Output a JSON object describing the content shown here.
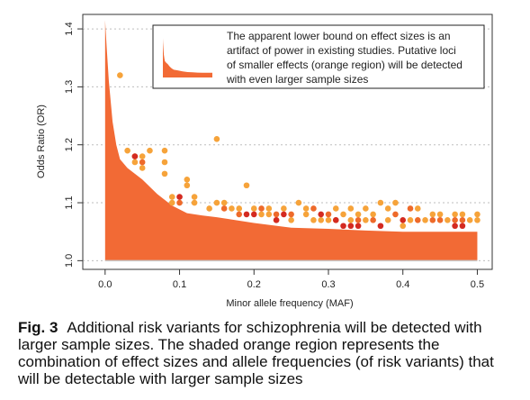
{
  "chart_data": {
    "type": "scatter",
    "title": "",
    "xlabel": "Minor allele frequency (MAF)",
    "ylabel": "Odds Ratio (OR)",
    "xlim": [
      -0.03,
      0.52
    ],
    "ylim": [
      0.985,
      1.425
    ],
    "xticks": [
      0.0,
      0.1,
      0.2,
      0.3,
      0.4,
      0.5
    ],
    "xtick_labels": [
      "0.0",
      "0.1",
      "0.2",
      "0.3",
      "0.4",
      "0.5"
    ],
    "yticks": [
      1.0,
      1.1,
      1.2,
      1.3,
      1.4
    ],
    "ytick_labels": [
      "1.0",
      "1.1",
      "1.2",
      "1.3",
      "1.4"
    ],
    "grid": "horizontal dotted",
    "annotation": "The apparent lower bound on effect sizes is an artifact of power in existing studies. Putative loci of smaller effects (orange region) will be detected with even larger sample sizes",
    "region_color": "#f26a35",
    "colors": [
      "#f6a33a",
      "#ee6a2a",
      "#d42a20"
    ],
    "region": {
      "x": [
        0.0,
        0.002,
        0.005,
        0.01,
        0.015,
        0.02,
        0.03,
        0.05,
        0.07,
        0.09,
        0.11,
        0.13,
        0.15,
        0.2,
        0.25,
        0.3,
        0.35,
        0.4,
        0.45,
        0.5
      ],
      "y": [
        1.415,
        1.37,
        1.31,
        1.24,
        1.2,
        1.175,
        1.16,
        1.14,
        1.115,
        1.095,
        1.082,
        1.078,
        1.075,
        1.065,
        1.057,
        1.055,
        1.052,
        1.05,
        1.05,
        1.05
      ]
    },
    "series": [
      {
        "color_index": 0,
        "points": [
          [
            0.02,
            1.32
          ],
          [
            0.03,
            1.19
          ],
          [
            0.04,
            1.17
          ],
          [
            0.04,
            1.18
          ],
          [
            0.05,
            1.16
          ],
          [
            0.05,
            1.18
          ],
          [
            0.06,
            1.19
          ],
          [
            0.08,
            1.19
          ],
          [
            0.08,
            1.17
          ],
          [
            0.08,
            1.15
          ],
          [
            0.09,
            1.1
          ],
          [
            0.09,
            1.11
          ],
          [
            0.11,
            1.14
          ],
          [
            0.11,
            1.13
          ],
          [
            0.12,
            1.11
          ],
          [
            0.12,
            1.1
          ],
          [
            0.14,
            1.09
          ],
          [
            0.15,
            1.21
          ],
          [
            0.15,
            1.1
          ],
          [
            0.16,
            1.1
          ],
          [
            0.17,
            1.09
          ],
          [
            0.18,
            1.09
          ],
          [
            0.19,
            1.13
          ],
          [
            0.2,
            1.09
          ],
          [
            0.21,
            1.08
          ],
          [
            0.22,
            1.08
          ],
          [
            0.22,
            1.09
          ],
          [
            0.23,
            1.07
          ],
          [
            0.24,
            1.09
          ],
          [
            0.25,
            1.07
          ],
          [
            0.26,
            1.1
          ],
          [
            0.27,
            1.08
          ],
          [
            0.27,
            1.09
          ],
          [
            0.28,
            1.07
          ],
          [
            0.29,
            1.07
          ],
          [
            0.3,
            1.07
          ],
          [
            0.31,
            1.09
          ],
          [
            0.31,
            1.07
          ],
          [
            0.32,
            1.08
          ],
          [
            0.33,
            1.09
          ],
          [
            0.33,
            1.07
          ],
          [
            0.34,
            1.08
          ],
          [
            0.35,
            1.09
          ],
          [
            0.35,
            1.07
          ],
          [
            0.36,
            1.08
          ],
          [
            0.37,
            1.1
          ],
          [
            0.38,
            1.09
          ],
          [
            0.38,
            1.07
          ],
          [
            0.39,
            1.1
          ],
          [
            0.4,
            1.06
          ],
          [
            0.41,
            1.07
          ],
          [
            0.42,
            1.09
          ],
          [
            0.43,
            1.07
          ],
          [
            0.44,
            1.08
          ],
          [
            0.45,
            1.08
          ],
          [
            0.46,
            1.07
          ],
          [
            0.47,
            1.08
          ],
          [
            0.48,
            1.08
          ],
          [
            0.49,
            1.07
          ],
          [
            0.5,
            1.07
          ],
          [
            0.5,
            1.08
          ]
        ]
      },
      {
        "color_index": 1,
        "points": [
          [
            0.05,
            1.17
          ],
          [
            0.1,
            1.1
          ],
          [
            0.16,
            1.09
          ],
          [
            0.18,
            1.08
          ],
          [
            0.21,
            1.09
          ],
          [
            0.23,
            1.08
          ],
          [
            0.25,
            1.08
          ],
          [
            0.28,
            1.09
          ],
          [
            0.3,
            1.08
          ],
          [
            0.34,
            1.07
          ],
          [
            0.36,
            1.07
          ],
          [
            0.39,
            1.08
          ],
          [
            0.41,
            1.09
          ],
          [
            0.42,
            1.07
          ],
          [
            0.44,
            1.07
          ],
          [
            0.45,
            1.07
          ],
          [
            0.47,
            1.07
          ],
          [
            0.48,
            1.07
          ]
        ]
      },
      {
        "color_index": 2,
        "points": [
          [
            0.04,
            1.18
          ],
          [
            0.1,
            1.11
          ],
          [
            0.19,
            1.08
          ],
          [
            0.2,
            1.08
          ],
          [
            0.23,
            1.07
          ],
          [
            0.24,
            1.08
          ],
          [
            0.29,
            1.08
          ],
          [
            0.31,
            1.07
          ],
          [
            0.32,
            1.06
          ],
          [
            0.33,
            1.06
          ],
          [
            0.34,
            1.06
          ],
          [
            0.37,
            1.06
          ],
          [
            0.4,
            1.07
          ],
          [
            0.47,
            1.06
          ],
          [
            0.48,
            1.06
          ]
        ]
      }
    ]
  },
  "caption": {
    "lead": "Fig. 3",
    "text": "Additional risk variants for schizophrenia will be detected with larger sample sizes. The shaded orange region represents the combination of effect sizes and allele frequencies (of risk variants) that will be detectable with larger sample sizes"
  }
}
